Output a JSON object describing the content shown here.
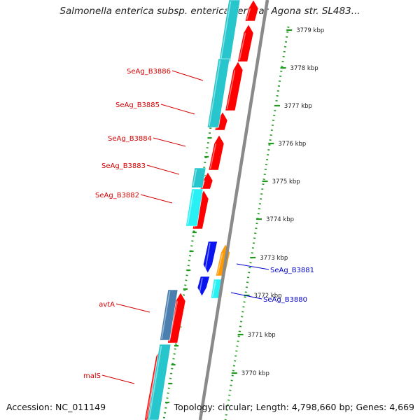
{
  "title": "Salmonella enterica subsp. enterica serovar Agona str. SL483...",
  "footer": {
    "accession": "Accession: NC_011149",
    "summary": "Topology: circular; Length: 4,798,660 bp; Genes: 4,669"
  },
  "scale_labels": [
    "3779 kbp",
    "3778 kbp",
    "3777 kbp",
    "3776 kbp",
    "3775 kbp",
    "3774 kbp",
    "3773 kbp",
    "3772 kbp",
    "3771 kbp",
    "3770 kbp"
  ],
  "genes": [
    {
      "label": "SeAg_B3886",
      "color": "#d40000"
    },
    {
      "label": "SeAg_B3885",
      "color": "#d40000"
    },
    {
      "label": "SeAg_B3884",
      "color": "#d40000"
    },
    {
      "label": "SeAg_B3883",
      "color": "#d40000"
    },
    {
      "label": "SeAg_B3882",
      "color": "#d40000"
    },
    {
      "label": "SeAg_B3881",
      "color": "#0000cc"
    },
    {
      "label": "SeAg_B3880",
      "color": "#0000cc"
    },
    {
      "label": "avtA",
      "color": "#d40000"
    },
    {
      "label": "malS",
      "color": "#d40000"
    }
  ],
  "colors": {
    "cds": "#ff0000",
    "cds_cyan": "#27c6cc",
    "cds_light_cyan": "#29f0f4",
    "rna": "#0a14ee",
    "orange": "#ff9900",
    "steel": "#4a7fb0",
    "backbone": "#8a8a8a",
    "ticks": "#1f9a1f"
  }
}
